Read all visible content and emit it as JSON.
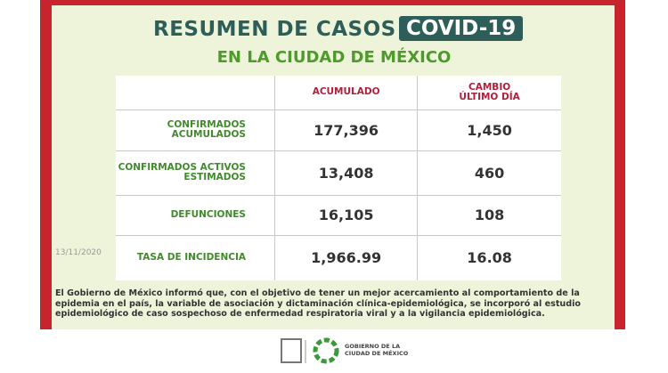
{
  "header": {
    "title": "RESUMEN DE CASOS",
    "badge": "COVID-19",
    "subtitle": "EN LA CIUDAD DE MÉXICO"
  },
  "table": {
    "columns": [
      "ACUMULADO",
      "CAMBIO ÚLTIMO DÍA"
    ],
    "rows": [
      [
        "CONFIRMADOS ACUMULADOS",
        "177,396",
        "1,450"
      ],
      [
        "CONFIRMADOS ACTIVOS ESTIMADOS",
        "13,408",
        "460"
      ],
      [
        "DEFUNCIONES",
        "16,105",
        "108"
      ],
      [
        "TASA DE INCIDENCIA",
        "1,966.99",
        "16.08"
      ]
    ]
  },
  "date": "13/11/2020",
  "footnote": "El Gobierno de México informó que, con el objetivo de tener un mejor acercamiento al comportamiento de la epidemia en el país, la variable de asociación y dictaminación clínica-epidemiológica, se incorporó al estudio epidemiológico de caso sospechoso de enfermedad respiratoria viral y a la vigilancia epidemiológica.",
  "logo": "GOBIERNO DE LA CIUDAD DE MÉXICO"
}
